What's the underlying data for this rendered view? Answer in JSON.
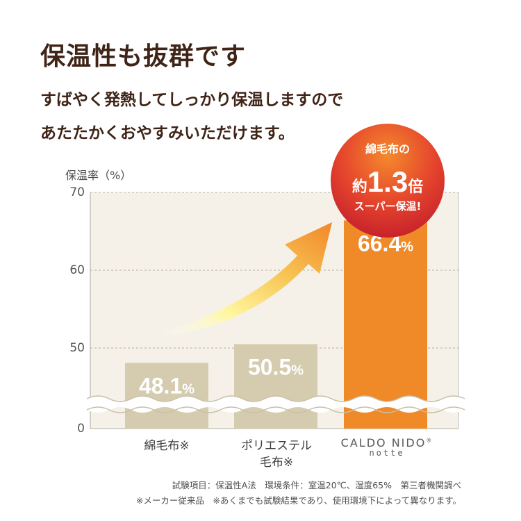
{
  "heading": {
    "title": "保温性も抜群です",
    "subtitle_line1": "すばやく発熱してしっかり保温しますので",
    "subtitle_line2": "あたたかくおやすみいただけます。"
  },
  "chart_data": {
    "type": "bar",
    "ylabel": "保温率（%）",
    "yticks": [
      70,
      60,
      50,
      0
    ],
    "axis_break": "between 0 and 50",
    "categories": [
      "綿毛布※",
      "ポリエステル毛布※",
      "CALDO NIDO notte"
    ],
    "category_lines": [
      [
        "綿毛布※"
      ],
      [
        "ポリエステル",
        "毛布※"
      ]
    ],
    "values": [
      48.1,
      50.5,
      66.4
    ],
    "value_labels": [
      "48.1",
      "50.5",
      "66.4"
    ],
    "unit": "%",
    "callout": {
      "line1": "綿毛布の",
      "line2_prefix": "約",
      "line2_value": "1.3",
      "line2_suffix": "倍",
      "line3": "スーパー保温!"
    }
  },
  "brand": {
    "name": "CALDO NIDO",
    "mark": "®",
    "sub": "notte"
  },
  "footnotes": {
    "line1": "試験項目：保温性A法　環境条件：室温20℃、湿度65%　第三者機関調べ",
    "line2": "※メーカー従来品　※あくまでも試験結果であり、使用環境下によって異なります。"
  },
  "colors": {
    "title": "#3f2417",
    "plot_bg": "#f5f1e8",
    "bar_gray": "#d5ccb0",
    "bar_highlight": "#f08a28",
    "callout_red": "#d7262b",
    "arrow_orange": "#f28a2a",
    "arrow_yellow": "#fff8a0"
  }
}
